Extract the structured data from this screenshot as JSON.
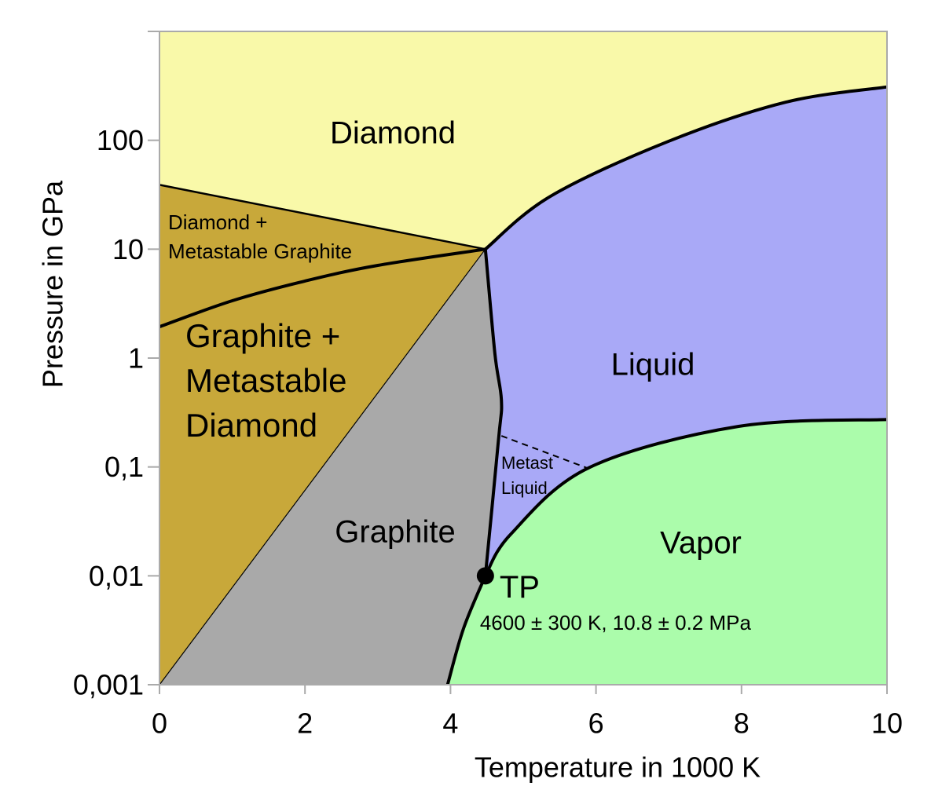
{
  "chart_data": {
    "type": "phase-diagram",
    "xlabel": "Temperature in 1000 K",
    "ylabel": "Pressure in GPa",
    "xlim": [
      0,
      10
    ],
    "xticks": [
      0,
      2,
      4,
      6,
      8,
      10
    ],
    "ylim": [
      0.001,
      1000
    ],
    "yscale": "log",
    "yticks": [
      {
        "value": 0.001,
        "label": "0,001"
      },
      {
        "value": 0.01,
        "label": "0,01"
      },
      {
        "value": 0.1,
        "label": "0,1"
      },
      1,
      10,
      100
    ],
    "regions": [
      {
        "label": [
          "Diamond"
        ],
        "color": "#f9f9a9"
      },
      {
        "label": [
          "Diamond +",
          "Metastable Graphite"
        ],
        "color": "#c8a83a"
      },
      {
        "label": [
          "Graphite +",
          "Metastable",
          "Diamond"
        ],
        "color": "#c8a83a"
      },
      {
        "label": [
          "Graphite"
        ],
        "color": "#a9a9a9"
      },
      {
        "label": [
          "Liquid"
        ],
        "color": "#a9a9f7"
      },
      {
        "label": [
          "Metast",
          "Liquid"
        ]
      },
      {
        "label": [
          "Vapor"
        ],
        "color": "#abfcab"
      }
    ],
    "boundaries": [
      {
        "x": [
          0,
          4.48
        ],
        "y": [
          39,
          10
        ],
        "style": "medium"
      },
      {
        "x": [
          0,
          1,
          2,
          3,
          4.48
        ],
        "y": [
          1.94,
          3.36,
          5.1,
          7.1,
          10
        ],
        "style": "thick"
      },
      {
        "x": [
          0,
          4.48
        ],
        "y": [
          0.001,
          10
        ],
        "style": "thin"
      },
      {
        "x": [
          4.48,
          5.37,
          6.99,
          8.61,
          10
        ],
        "y": [
          10,
          30.5,
          97.5,
          224,
          309
        ],
        "style": "thick"
      },
      {
        "x": [
          4.48,
          4.61,
          4.7,
          4.66,
          4.48
        ],
        "y": [
          10,
          1.1,
          0.41,
          0.178,
          0.01
        ],
        "style": "thick"
      },
      {
        "x": [
          4.48,
          4.83,
          5.91,
          7.96,
          10
        ],
        "y": [
          0.01,
          0.0242,
          0.099,
          0.236,
          0.273
        ],
        "style": "thick"
      },
      {
        "x": [
          4.48,
          4.18,
          3.96
        ],
        "y": [
          0.01,
          0.0033,
          0.001
        ],
        "style": "thick"
      },
      {
        "x": [
          4.7,
          5.91
        ],
        "y": [
          0.193,
          0.096
        ],
        "style": "dashed"
      }
    ],
    "triple_point": {
      "label": "TP",
      "note": "4600 ± 300 K, 10.8 ± 0.2 MPa",
      "x": 4.48,
      "y": 0.01
    }
  }
}
